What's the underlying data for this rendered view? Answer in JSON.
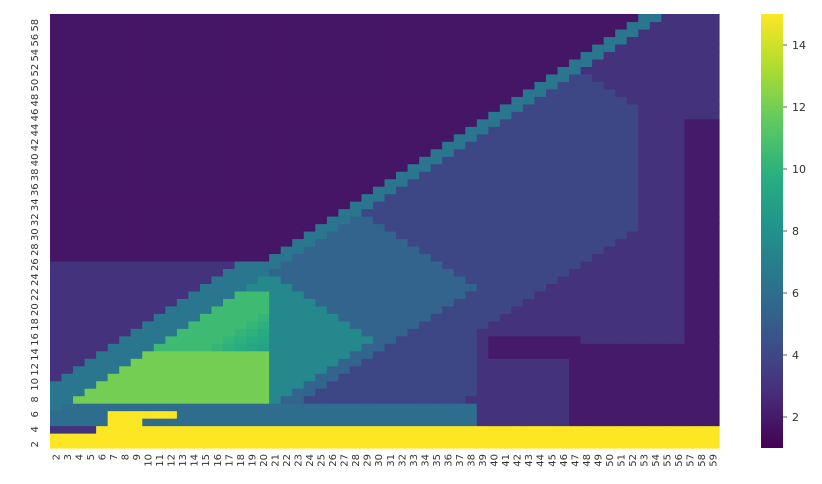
{
  "chart_data": {
    "type": "heatmap",
    "title": "",
    "xlabel": "",
    "ylabel": "",
    "x_ticks": [
      "2",
      "3",
      "4",
      "5",
      "6",
      "7",
      "8",
      "9",
      "10",
      "11",
      "12",
      "13",
      "14",
      "15",
      "16",
      "17",
      "18",
      "19",
      "20",
      "21",
      "22",
      "23",
      "24",
      "25",
      "26",
      "27",
      "28",
      "29",
      "30",
      "31",
      "32",
      "33",
      "34",
      "35",
      "36",
      "37",
      "38",
      "39",
      "40",
      "41",
      "42",
      "43",
      "44",
      "45",
      "46",
      "47",
      "48",
      "49",
      "50",
      "51",
      "52",
      "53",
      "54",
      "55",
      "56",
      "57",
      "58",
      "59"
    ],
    "y_ticks": [
      "2",
      "4",
      "6",
      "8",
      "10",
      "12",
      "14",
      "16",
      "18",
      "20",
      "22",
      "24",
      "26",
      "28",
      "30",
      "32",
      "34",
      "36",
      "38",
      "40",
      "42",
      "44",
      "46",
      "48",
      "50",
      "52",
      "54",
      "56",
      "58"
    ],
    "x_range": [
      2,
      59
    ],
    "y_range": [
      2,
      59
    ],
    "y_axis_origin": "bottom",
    "colormap": "viridis",
    "colorbar": {
      "min": 1,
      "max": 15,
      "ticks": [
        "2",
        "4",
        "6",
        "8",
        "10",
        "12",
        "14"
      ]
    },
    "regions_description_values": {
      "bottom_band_value": 15,
      "upper_left_value": 1.8,
      "left_lower_value": 3.0,
      "core_peak_value": 12,
      "mid_diagonal_value": 5.5,
      "outer_diagonal_value": 4.0,
      "right_side_value": 3.0,
      "right_edge_value": 2.0
    }
  }
}
